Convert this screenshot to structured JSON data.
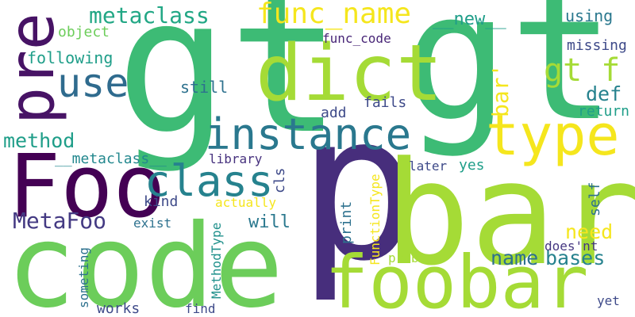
{
  "colors": {
    "background": "#ffffff",
    "palette": [
      "#440154",
      "#482878",
      "#3e4a89",
      "#31688e",
      "#26828e",
      "#1f9e89",
      "#35b779",
      "#6ece58",
      "#b5de2b",
      "#fde725"
    ]
  },
  "words": [
    {
      "text": "gt",
      "color": "#3dbb75"
    },
    {
      "text": "p",
      "color": "#472e7c"
    },
    {
      "text": "gt",
      "color": "#3dbb75"
    },
    {
      "text": "bar",
      "color": "#a5db36"
    },
    {
      "text": "code",
      "color": "#6ccd5a"
    },
    {
      "text": "foobar",
      "color": "#a5db36"
    },
    {
      "text": "dict",
      "color": "#a5db36"
    },
    {
      "text": "Foo",
      "color": "#440154"
    },
    {
      "text": "pre",
      "color": "#471365"
    },
    {
      "text": "type",
      "color": "#f5e61d"
    },
    {
      "text": "instance",
      "color": "#2a788e"
    },
    {
      "text": "class",
      "color": "#26828e"
    },
    {
      "text": "use",
      "color": "#2f6b8e"
    },
    {
      "text": "gt f",
      "color": "#a5db36"
    },
    {
      "text": "func_name",
      "color": "#f5e61d"
    },
    {
      "text": "metaclass",
      "color": "#22a785"
    },
    {
      "text": "bar'",
      "color": "#f5e61d"
    },
    {
      "text": "MetaFoo",
      "color": "#443a83"
    },
    {
      "text": "method",
      "color": "#1f9e89"
    },
    {
      "text": "need",
      "color": "#f5e61d"
    },
    {
      "text": "name",
      "color": "#2d718e"
    },
    {
      "text": "bases",
      "color": "#26828e"
    },
    {
      "text": "def",
      "color": "#26828e"
    },
    {
      "text": "__new__",
      "color": "#1f9e89"
    },
    {
      "text": "using",
      "color": "#2a788e"
    },
    {
      "text": "missing",
      "color": "#3e4a89"
    },
    {
      "text": "return",
      "color": "#1f9e89"
    },
    {
      "text": "following",
      "color": "#1f9e89"
    },
    {
      "text": "object",
      "color": "#6ccd5a"
    },
    {
      "text": "func_code",
      "color": "#482677"
    },
    {
      "text": "still",
      "color": "#2d718e"
    },
    {
      "text": "add",
      "color": "#3e4a89"
    },
    {
      "text": "fails",
      "color": "#3e4a89"
    },
    {
      "text": "__metaclass__",
      "color": "#23888e"
    },
    {
      "text": "library",
      "color": "#46317e"
    },
    {
      "text": "yes",
      "color": "#1f9e89"
    },
    {
      "text": "later",
      "color": "#3e4a89"
    },
    {
      "text": "cls",
      "color": "#3e4a89"
    },
    {
      "text": "kind",
      "color": "#3e4a89"
    },
    {
      "text": "actually",
      "color": "#f5e61d"
    },
    {
      "text": "will",
      "color": "#2a788e"
    },
    {
      "text": "exist",
      "color": "#2d718e"
    },
    {
      "text": "print",
      "color": "#2d718e"
    },
    {
      "text": "self",
      "color": "#2d718e"
    },
    {
      "text": "FunctionType",
      "color": "#f5e61d"
    },
    {
      "text": "does'nt",
      "color": "#453781"
    },
    {
      "text": "problem",
      "color": "#a5db36"
    },
    {
      "text": "MethodType",
      "color": "#21918c"
    },
    {
      "text": "someting",
      "color": "#2d718e"
    },
    {
      "text": "works",
      "color": "#3e4a89"
    },
    {
      "text": "find",
      "color": "#3e4a89"
    },
    {
      "text": "yet",
      "color": "#3e4a89"
    }
  ]
}
